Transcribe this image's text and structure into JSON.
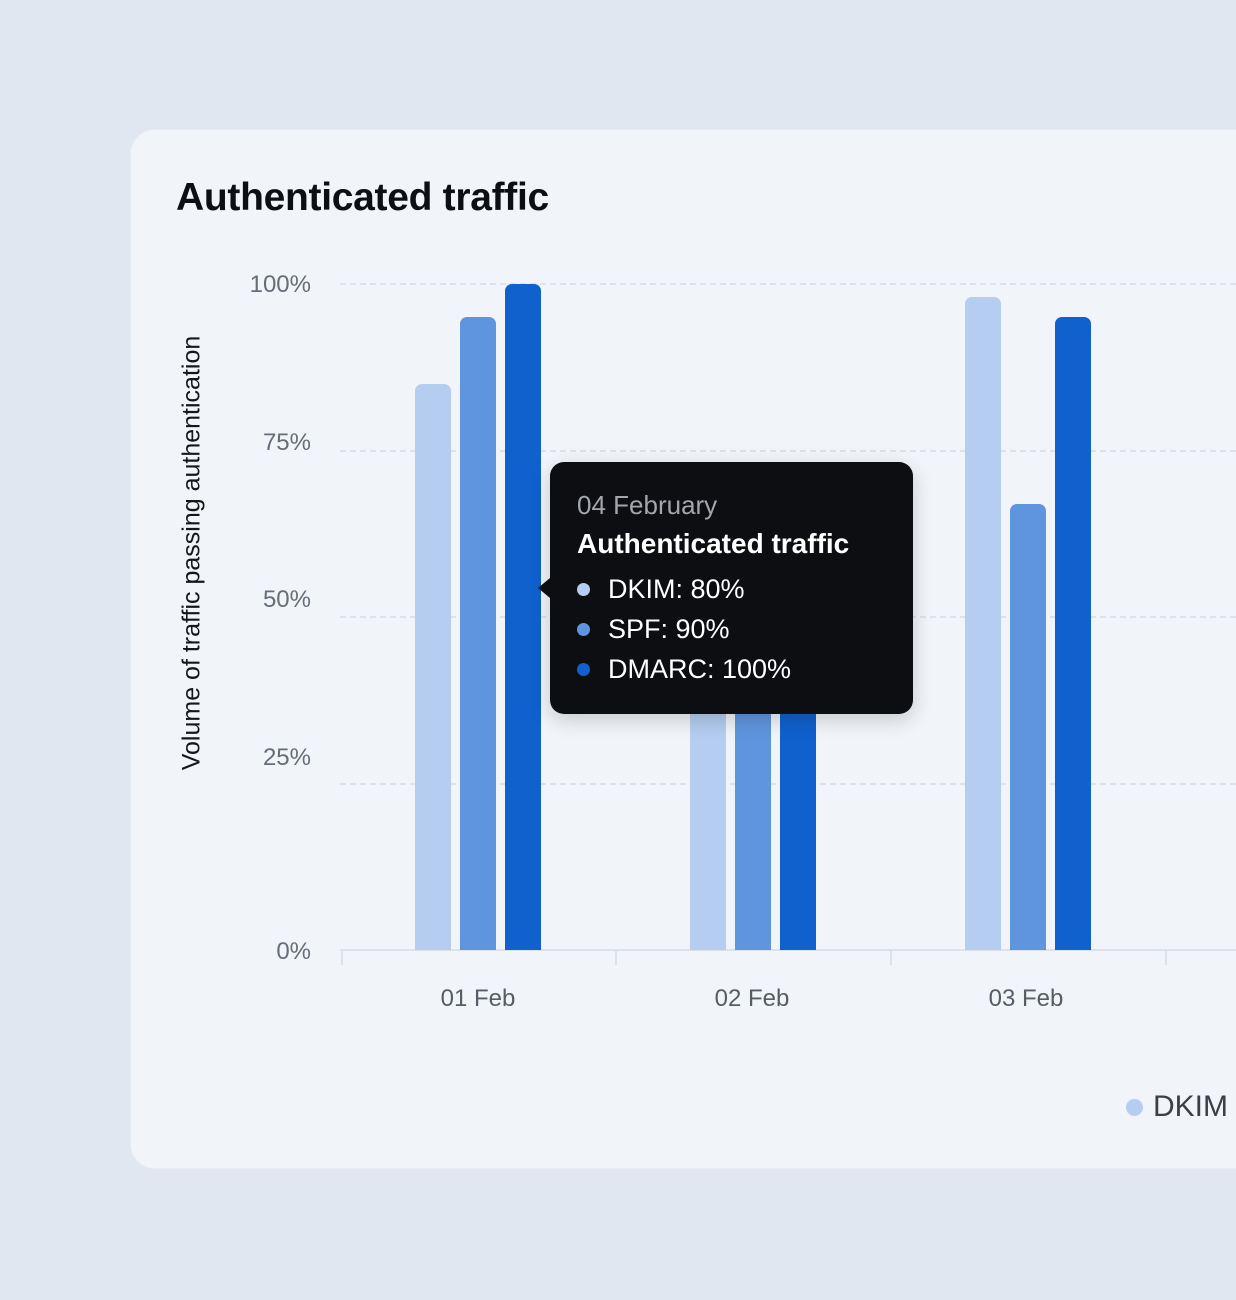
{
  "card": {
    "title": "Authenticated traffic"
  },
  "chart_data": {
    "type": "bar",
    "title": "Authenticated traffic",
    "xlabel": "",
    "ylabel": "Volume of traffic passing authentication",
    "ylim": [
      0,
      100
    ],
    "yticks": [
      "0%",
      "25%",
      "50%",
      "75%",
      "100%"
    ],
    "grid": true,
    "legend_position": "bottom-right",
    "categories": [
      "01 Feb",
      "02 Feb",
      "03 Feb"
    ],
    "series": [
      {
        "name": "DKIM",
        "color": "#b5cdf0",
        "values": [
          85,
          60,
          98
        ]
      },
      {
        "name": "SPF",
        "color": "#5f95de",
        "values": [
          95,
          60,
          67
        ]
      },
      {
        "name": "DMARC",
        "color": "#1061cd",
        "values": [
          100,
          60,
          95
        ]
      }
    ]
  },
  "tooltip": {
    "date": "04 February",
    "title": "Authenticated traffic",
    "rows": [
      {
        "label": "DKIM: 80%",
        "color": "#b5cdf0"
      },
      {
        "label": "SPF: 90%",
        "color": "#5f95de"
      },
      {
        "label": "DMARC: 100%",
        "color": "#1061cd"
      }
    ]
  },
  "legend": {
    "items": [
      {
        "label": "DKIM",
        "color": "#b5cdf0"
      }
    ]
  }
}
